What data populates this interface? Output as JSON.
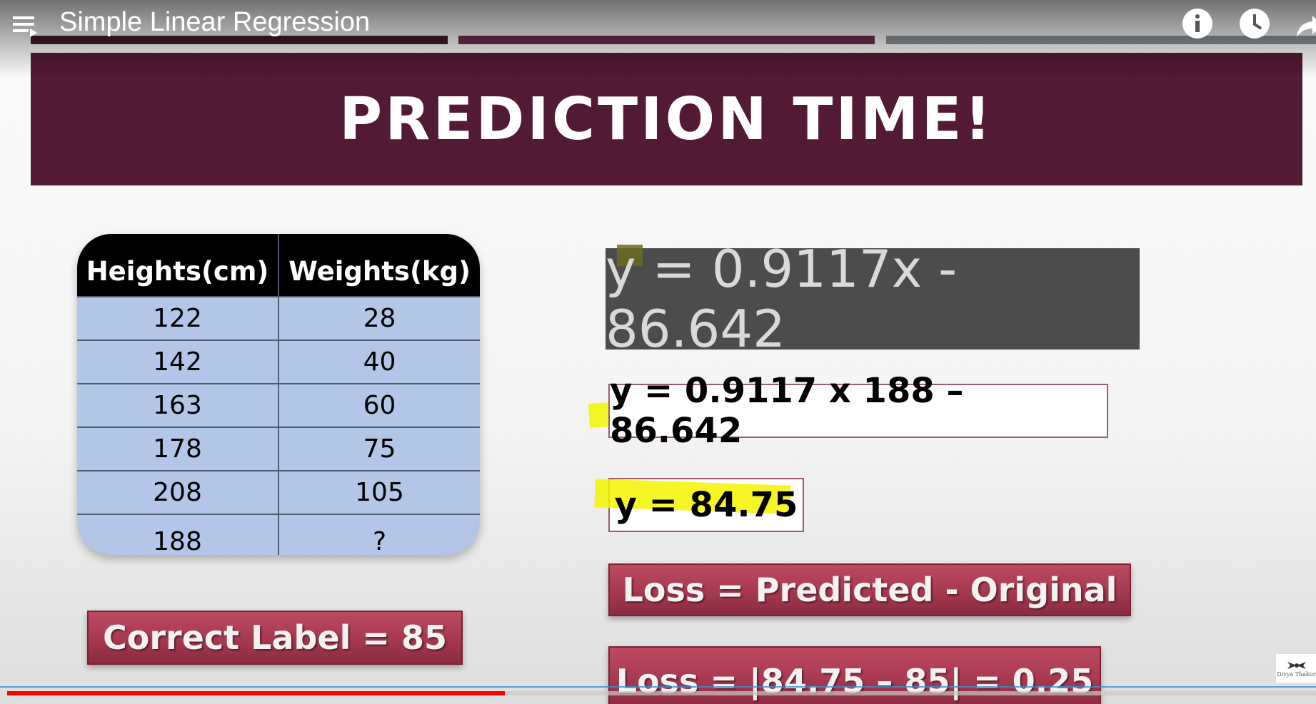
{
  "player": {
    "title": "Simple Linear Regression",
    "progress_fraction": 0.38
  },
  "slide": {
    "banner_title": "PREDICTION TIME!",
    "table": {
      "headers": [
        "Heights(cm)",
        "Weights(kg)"
      ],
      "rows": [
        [
          "122",
          "28"
        ],
        [
          "142",
          "40"
        ],
        [
          "163",
          "60"
        ],
        [
          "178",
          "75"
        ],
        [
          "208",
          "105"
        ],
        [
          "188",
          "?"
        ]
      ]
    },
    "equation": "y = 0.9117x - 86.642",
    "substitution": "y = 0.9117 x 188 – 86.642",
    "result": "y = 84.75",
    "correct_label": "Correct Label = 85",
    "loss_definition": "Loss = Predicted - Original",
    "loss_calculation": "Loss = |84.75 – 85| = 0.25"
  },
  "watermark": {
    "text": "Divya Thakur"
  },
  "colors": {
    "banner": "#521a34",
    "table_body": "#b4c6e7",
    "highlight": "#f4f400",
    "progress": "#ff0000"
  },
  "icons": [
    "menu-playlist-icon",
    "info-icon",
    "clock-icon",
    "share-icon"
  ]
}
